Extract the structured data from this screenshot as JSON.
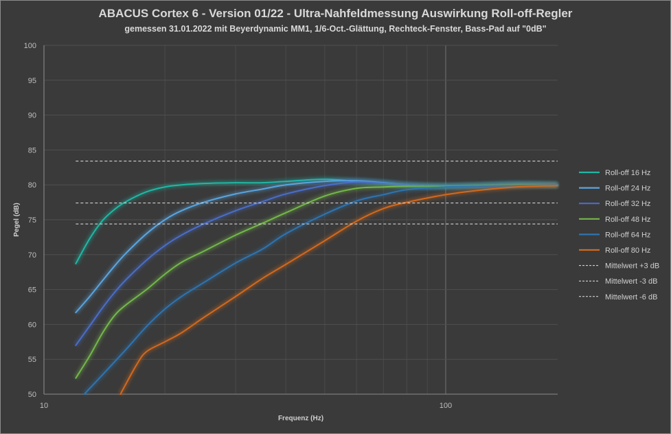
{
  "chart_data": {
    "type": "line",
    "title": "ABACUS Cortex 6 - Version 01/22 - Ultra-Nahfeldmessung Auswirkung Roll-off-Regler",
    "subtitle": "gemessen 31.01.2022  mit Beyerdynamic MM1, 1/6-Oct.-Glättung, Rechteck-Fenster, Bass-Pad auf \"0dB\"",
    "xlabel": "Frequenz  (Hz)",
    "ylabel": "Pegel (dB)",
    "x_scale": "log",
    "xlim": [
      10,
      190
    ],
    "ylim": [
      50,
      100
    ],
    "x_ticks": [
      10,
      100
    ],
    "x_tick_labels": [
      "10",
      "100"
    ],
    "y_ticks": [
      50,
      55,
      60,
      65,
      70,
      75,
      80,
      85,
      90,
      95,
      100
    ],
    "y_tick_labels": [
      "50",
      "55",
      "60",
      "65",
      "70",
      "75",
      "80",
      "85",
      "90",
      "95",
      "100"
    ],
    "grid": true,
    "legend_position": "right",
    "series": [
      {
        "name": "Roll-off 16 Hz",
        "color": "#1fb8a5",
        "x": [
          12,
          13,
          14,
          15,
          16,
          18,
          20,
          22,
          25,
          30,
          35,
          40,
          50,
          60,
          70,
          80,
          100,
          120,
          150,
          190
        ],
        "y": [
          68.7,
          72.3,
          74.9,
          76.5,
          77.6,
          79.0,
          79.7,
          80.0,
          80.2,
          80.3,
          80.3,
          80.5,
          80.8,
          80.5,
          80.3,
          80.0,
          79.8,
          79.9,
          80.1,
          80.0
        ]
      },
      {
        "name": "Roll-off 24 Hz",
        "color": "#5aa5e0",
        "x": [
          12,
          13,
          14,
          15,
          16,
          18,
          20,
          22,
          25,
          30,
          35,
          40,
          50,
          60,
          70,
          80,
          100,
          120,
          150,
          190
        ],
        "y": [
          61.7,
          64.0,
          66.3,
          68.4,
          70.2,
          73.0,
          75.0,
          76.3,
          77.5,
          78.7,
          79.4,
          80.0,
          80.5,
          80.6,
          80.3,
          80.0,
          79.8,
          79.9,
          80.1,
          80.0
        ]
      },
      {
        "name": "Roll-off 32 Hz",
        "color": "#4a6ec8",
        "x": [
          12,
          13,
          14,
          15,
          16,
          18,
          20,
          22,
          25,
          30,
          35,
          40,
          50,
          60,
          70,
          80,
          100,
          120,
          150,
          190
        ],
        "y": [
          57.0,
          59.8,
          62.4,
          64.6,
          66.4,
          69.2,
          71.3,
          72.8,
          74.4,
          76.3,
          77.6,
          78.7,
          79.9,
          80.4,
          80.2,
          80.0,
          79.8,
          79.9,
          80.1,
          80.0
        ]
      },
      {
        "name": "Roll-off 48 Hz",
        "color": "#74b84a",
        "x": [
          12,
          13,
          14,
          15,
          16,
          18,
          20,
          22,
          25,
          30,
          35,
          40,
          50,
          60,
          70,
          80,
          100,
          120,
          150,
          190
        ],
        "y": [
          52.3,
          55.5,
          58.8,
          61.3,
          62.8,
          65.0,
          67.2,
          68.9,
          70.5,
          72.8,
          74.5,
          76.0,
          78.4,
          79.5,
          79.7,
          79.8,
          79.8,
          79.9,
          80.0,
          80.0
        ]
      },
      {
        "name": "Roll-off 64 Hz",
        "color": "#2f74b0",
        "x": [
          12.6,
          14,
          16,
          18,
          20,
          22,
          25,
          30,
          35,
          40,
          50,
          60,
          70,
          80,
          100,
          120,
          150,
          190
        ],
        "y": [
          50.0,
          52.8,
          56.4,
          59.7,
          62.2,
          64.0,
          66.0,
          68.8,
          70.8,
          73.0,
          75.8,
          77.7,
          78.6,
          79.3,
          79.7,
          79.8,
          79.9,
          80.0
        ]
      },
      {
        "name": "Roll-off 80 Hz",
        "color": "#d2691e",
        "x": [
          15.5,
          17,
          18,
          20,
          22,
          25,
          30,
          35,
          40,
          50,
          60,
          70,
          80,
          100,
          120,
          150,
          190
        ],
        "y": [
          50.0,
          54.2,
          56.1,
          57.5,
          58.8,
          61.0,
          64.0,
          66.6,
          68.6,
          72.0,
          74.8,
          76.6,
          77.5,
          78.6,
          79.2,
          79.7,
          79.9
        ]
      },
      {
        "name": "Mittelwert +3 dB",
        "color": "#e6e6e6",
        "dashed": true,
        "x": [
          12,
          190
        ],
        "y": [
          83.4,
          83.4
        ]
      },
      {
        "name": "Mittelwert -3 dB",
        "color": "#e6e6e6",
        "dashed": true,
        "x": [
          12,
          190
        ],
        "y": [
          77.4,
          77.4
        ]
      },
      {
        "name": "Mittelwert -6 dB",
        "color": "#e6e6e6",
        "dashed": true,
        "x": [
          12,
          190
        ],
        "y": [
          74.4,
          74.4
        ]
      }
    ]
  }
}
